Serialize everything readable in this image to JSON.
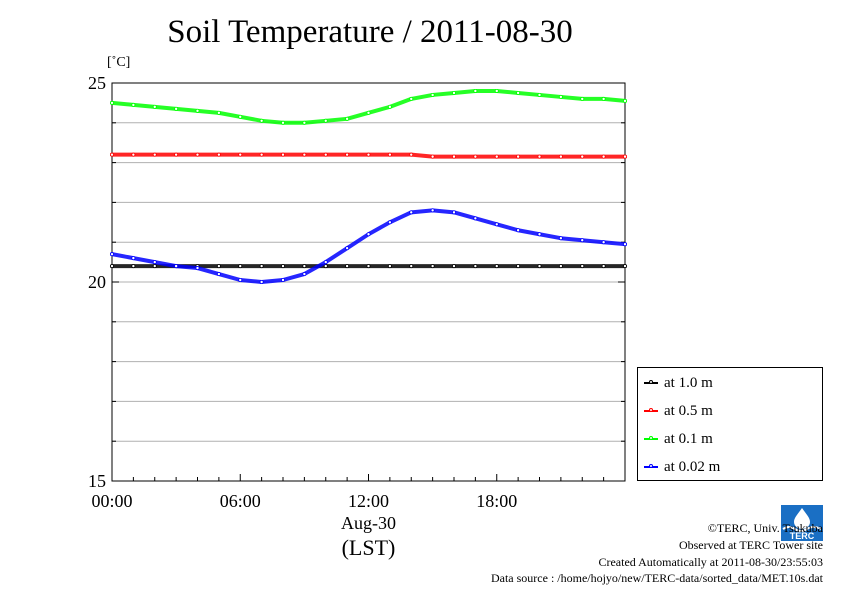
{
  "title": "Soil Temperature / 2011-08-30",
  "unit_label": "[˚C]",
  "chart_data": {
    "type": "line",
    "ylim": [
      15,
      25
    ],
    "xlim_hours": [
      0,
      24
    ],
    "y_ticks": [
      "15",
      "20",
      "25"
    ],
    "x_ticks": [
      "00:00",
      "06:00",
      "12:00",
      "18:00"
    ],
    "x_date": "Aug-30",
    "x_unit": "(LST)",
    "grid": true,
    "legend_position": "bottom-right outside",
    "x_hours": [
      0,
      1,
      2,
      3,
      4,
      5,
      6,
      7,
      8,
      9,
      10,
      11,
      12,
      13,
      14,
      15,
      16,
      17,
      18,
      19,
      20,
      21,
      22,
      23,
      24
    ],
    "series": [
      {
        "name": "at 1.0 m",
        "color": "#000000",
        "values": [
          20.4,
          20.4,
          20.4,
          20.4,
          20.4,
          20.4,
          20.4,
          20.4,
          20.4,
          20.4,
          20.4,
          20.4,
          20.4,
          20.4,
          20.4,
          20.4,
          20.4,
          20.4,
          20.4,
          20.4,
          20.4,
          20.4,
          20.4,
          20.4,
          20.4
        ]
      },
      {
        "name": "at 0.5 m",
        "color": "#ff0000",
        "values": [
          23.2,
          23.2,
          23.2,
          23.2,
          23.2,
          23.2,
          23.2,
          23.2,
          23.2,
          23.2,
          23.2,
          23.2,
          23.2,
          23.2,
          23.2,
          23.15,
          23.15,
          23.15,
          23.15,
          23.15,
          23.15,
          23.15,
          23.15,
          23.15,
          23.15
        ]
      },
      {
        "name": "at 0.1 m",
        "color": "#00ff00",
        "values": [
          24.5,
          24.45,
          24.4,
          24.35,
          24.3,
          24.25,
          24.15,
          24.05,
          24.0,
          24.0,
          24.05,
          24.1,
          24.25,
          24.4,
          24.6,
          24.7,
          24.75,
          24.8,
          24.8,
          24.75,
          24.7,
          24.65,
          24.6,
          24.6,
          24.55
        ]
      },
      {
        "name": "at 0.02 m",
        "color": "#0000ff",
        "values": [
          20.7,
          20.6,
          20.5,
          20.4,
          20.35,
          20.2,
          20.05,
          20.0,
          20.05,
          20.2,
          20.5,
          20.85,
          21.2,
          21.5,
          21.75,
          21.8,
          21.75,
          21.6,
          21.45,
          21.3,
          21.2,
          21.1,
          21.05,
          21.0,
          20.95
        ]
      }
    ]
  },
  "footer": {
    "copyright": "©TERC, Univ. Tsukuba",
    "observed": "Observed at TERC Tower site",
    "created": "Created Automatically at 2011-08-30/23:55:03",
    "source": "Data source : /home/hojyo/new/TERC-data/sorted_data/MET.10s.dat",
    "logo_text": "TERC"
  }
}
